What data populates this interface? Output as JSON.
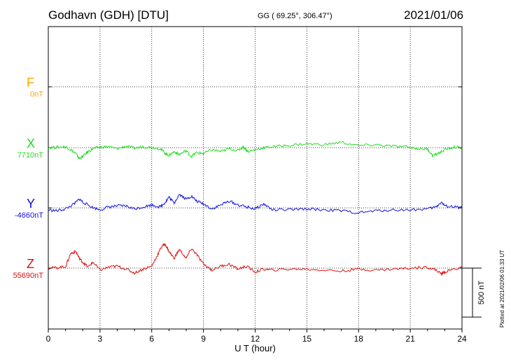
{
  "header": {
    "station": "Godhavn (GDH)  [DTU]",
    "coords": "GG ( 69.25°, 306.47°)",
    "date": "2021/01/06"
  },
  "footer": {
    "plotted": "Plotted at 2021/02/06 01:33 UT"
  },
  "chart_data": {
    "type": "line",
    "title": "Godhavn (GDH)  [DTU]",
    "xlabel": "U T (hour)",
    "xlim": [
      0,
      24
    ],
    "xticks": [
      0,
      3,
      6,
      9,
      12,
      15,
      18,
      21,
      24
    ],
    "scale_bar": {
      "label": "500 nT",
      "value": 500
    },
    "grid": true,
    "series": [
      {
        "name": "F",
        "baseline": "0nT",
        "color": "#ffa500",
        "x": [],
        "y": []
      },
      {
        "name": "X",
        "baseline": "7710nT",
        "color": "#22dd22",
        "x": [
          0,
          0.5,
          1,
          1.3,
          1.6,
          1.8,
          2,
          2.3,
          2.6,
          3,
          3.5,
          4,
          4.5,
          5,
          5.5,
          6,
          6.5,
          6.8,
          7,
          7.3,
          7.6,
          8,
          8.3,
          8.6,
          9,
          9.5,
          10,
          10.5,
          11,
          11.3,
          11.6,
          12,
          12.5,
          13,
          14,
          15,
          16,
          17,
          18,
          19,
          20,
          21,
          21.5,
          22,
          22.3,
          22.6,
          23,
          23.5,
          24
        ],
        "y": [
          0,
          5,
          10,
          -20,
          -60,
          -110,
          -90,
          -40,
          -10,
          5,
          10,
          -10,
          15,
          -5,
          10,
          5,
          -10,
          -60,
          -80,
          -40,
          -70,
          -30,
          -90,
          -50,
          -60,
          -20,
          -40,
          -10,
          -30,
          10,
          -40,
          -20,
          0,
          10,
          25,
          40,
          30,
          55,
          20,
          30,
          15,
          5,
          -10,
          -15,
          -80,
          -60,
          -20,
          5,
          0
        ]
      },
      {
        "name": "Y",
        "baseline": "-4660nT",
        "color": "#1010e0",
        "x": [
          0,
          0.5,
          1,
          1.5,
          1.8,
          2,
          2.5,
          3,
          3.5,
          4,
          4.5,
          5,
          5.5,
          6,
          6.5,
          6.8,
          7,
          7.3,
          7.6,
          8,
          8.3,
          8.6,
          9,
          9.5,
          10,
          10.5,
          11,
          11.5,
          12,
          12.5,
          13,
          14,
          15,
          16,
          17,
          18,
          19,
          20,
          21,
          22,
          22.5,
          22.8,
          23,
          23.5,
          24
        ],
        "y": [
          -20,
          -30,
          -10,
          40,
          90,
          60,
          10,
          -20,
          10,
          20,
          20,
          -10,
          10,
          30,
          10,
          60,
          110,
          50,
          140,
          90,
          120,
          70,
          40,
          -10,
          30,
          70,
          30,
          10,
          -10,
          40,
          -20,
          -20,
          -10,
          -20,
          -30,
          -50,
          -30,
          -20,
          -20,
          -10,
          10,
          60,
          20,
          10,
          0
        ]
      },
      {
        "name": "Z",
        "baseline": "55690nT",
        "color": "#e01010",
        "x": [
          0,
          0.5,
          1,
          1.3,
          1.6,
          1.8,
          2,
          2.3,
          2.6,
          3,
          3.5,
          4,
          4.5,
          5,
          5.5,
          6,
          6.3,
          6.6,
          6.8,
          7,
          7.3,
          7.6,
          8,
          8.3,
          8.6,
          9,
          9.5,
          10,
          10.5,
          11,
          11.5,
          12,
          12.5,
          13,
          14,
          15,
          16,
          17,
          18,
          19,
          20,
          21,
          22,
          22.5,
          22.8,
          23,
          23.5,
          24
        ],
        "y": [
          0,
          5,
          15,
          150,
          170,
          100,
          60,
          10,
          60,
          -20,
          10,
          20,
          -10,
          -50,
          -10,
          20,
          120,
          230,
          240,
          170,
          100,
          190,
          100,
          200,
          140,
          40,
          -20,
          20,
          40,
          -10,
          20,
          -40,
          -10,
          -20,
          -10,
          -10,
          -20,
          -30,
          -10,
          -20,
          -10,
          0,
          10,
          -20,
          -60,
          -40,
          -10,
          0
        ]
      }
    ]
  }
}
